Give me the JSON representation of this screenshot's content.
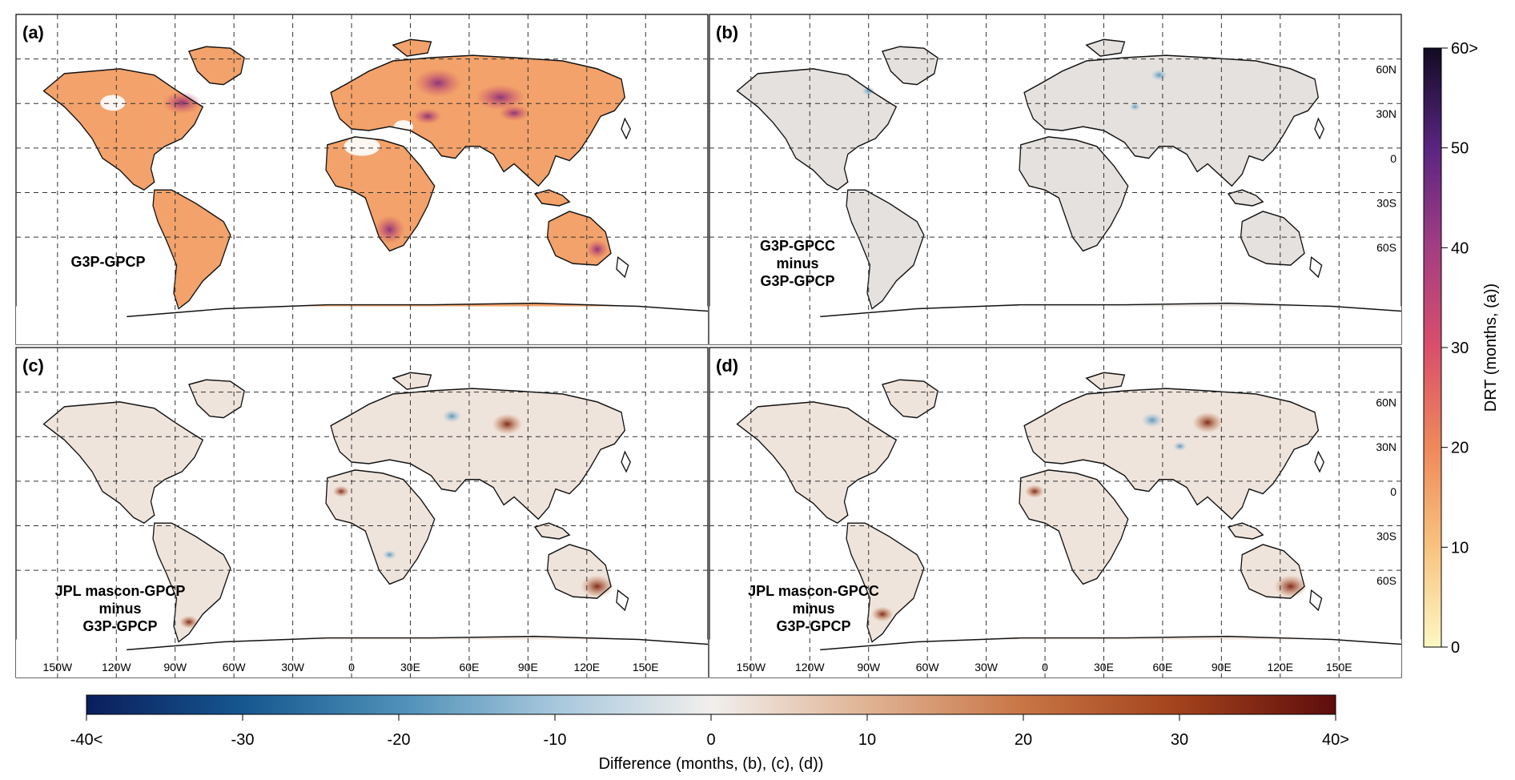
{
  "panels": [
    {
      "id": "a",
      "tag": "(a)",
      "label_lines": [
        "G3P-GPCP"
      ],
      "kind": "drt"
    },
    {
      "id": "b",
      "tag": "(b)",
      "label_lines": [
        "G3P-GPCC",
        "minus",
        "G3P-GPCP"
      ],
      "kind": "diff"
    },
    {
      "id": "c",
      "tag": "(c)",
      "label_lines": [
        "JPL mascon-GPCP",
        "minus",
        "G3P-GPCP"
      ],
      "kind": "diff"
    },
    {
      "id": "d",
      "tag": "(d)",
      "label_lines": [
        "JPL mascon-GPCC",
        "minus",
        "G3P-GPCP"
      ],
      "kind": "diff"
    }
  ],
  "axes": {
    "lat_labels": [
      "60N",
      "30N",
      "0",
      "30S",
      "60S"
    ],
    "lon_labels": [
      "150W",
      "120W",
      "90W",
      "60W",
      "30W",
      "0",
      "30E",
      "60E",
      "90E",
      "120E",
      "150E"
    ]
  },
  "drt_colorbar": {
    "title": "DRT (months, (a))",
    "ticks": [
      "0",
      "10",
      "20",
      "30",
      "40",
      "50",
      "60>"
    ],
    "min": 0,
    "max": 60,
    "colors": [
      "#fdf7c3",
      "#f8c27e",
      "#ef8a5a",
      "#d94f6b",
      "#a23d83",
      "#5b2582",
      "#120b24"
    ]
  },
  "diff_colorbar": {
    "title": "Difference (months, (b), (c), (d))",
    "ticks": [
      "-40<",
      "-30",
      "-20",
      "-10",
      "0",
      "10",
      "20",
      "30",
      "40>"
    ],
    "min": -40,
    "max": 40,
    "colors": [
      "#0a1e5c",
      "#16578f",
      "#4d8fb7",
      "#a6c7dc",
      "#f1efed",
      "#e0b394",
      "#c87545",
      "#a2421c",
      "#5e0d0d"
    ]
  }
}
